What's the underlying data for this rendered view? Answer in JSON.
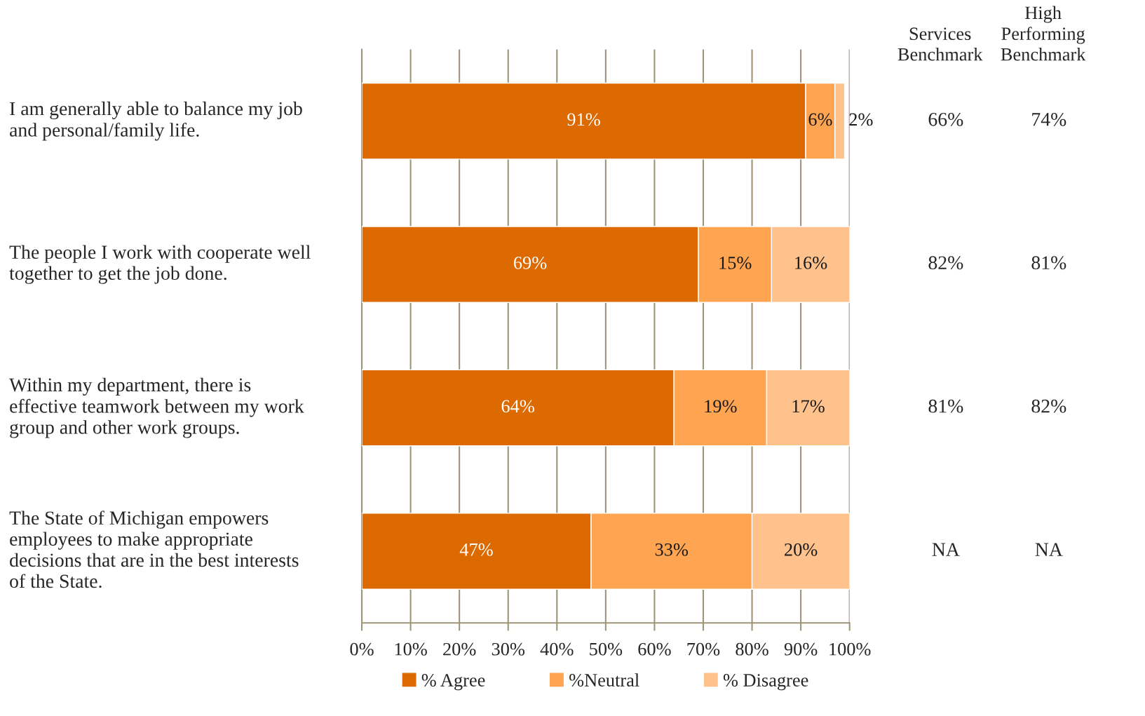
{
  "chart_data": {
    "type": "bar",
    "orientation": "horizontal",
    "stacked": true,
    "categories": [
      "I am generally able to balance my job\nand personal/family life.",
      "The people I work with cooperate well\ntogether to get the job done.",
      "Within my department, there is\neffective teamwork between my work\ngroup and other work groups.",
      "The State of Michigan empowers\nemployees to make appropriate\ndecisions that are in the best interests\nof the State."
    ],
    "series": [
      {
        "name": "% Agree",
        "color": "#dd6a00",
        "values": [
          91,
          69,
          64,
          47
        ],
        "value_labels": [
          "91%",
          "69%",
          "64%",
          "47%"
        ]
      },
      {
        "name": "%Neutral",
        "color": "#ffa552",
        "values": [
          6,
          15,
          19,
          33
        ],
        "value_labels": [
          "6%",
          "15%",
          "19%",
          "33%"
        ]
      },
      {
        "name": "% Disagree",
        "color": "#ffc28c",
        "values": [
          2,
          16,
          17,
          20
        ],
        "value_labels": [
          "2%",
          "16%",
          "17%",
          "20%"
        ]
      }
    ],
    "xlim": [
      0,
      100
    ],
    "xticks": [
      {
        "value": 0,
        "label": "0%"
      },
      {
        "value": 10,
        "label": "10%"
      },
      {
        "value": 20,
        "label": "20%"
      },
      {
        "value": 30,
        "label": "30%"
      },
      {
        "value": 40,
        "label": "40%"
      },
      {
        "value": 50,
        "label": "50%"
      },
      {
        "value": 60,
        "label": "60%"
      },
      {
        "value": 70,
        "label": "70%"
      },
      {
        "value": 80,
        "label": "80%"
      },
      {
        "value": 90,
        "label": "90%"
      },
      {
        "value": 100,
        "label": "100%"
      }
    ],
    "grid": "x",
    "legend": "bottom",
    "annotations": [
      "Services\nBenchmark",
      "High\nPerforming\nBenchmark",
      "66%",
      "74%",
      "82%",
      "81%",
      "81%",
      "82%",
      "NA",
      "NA"
    ]
  }
}
